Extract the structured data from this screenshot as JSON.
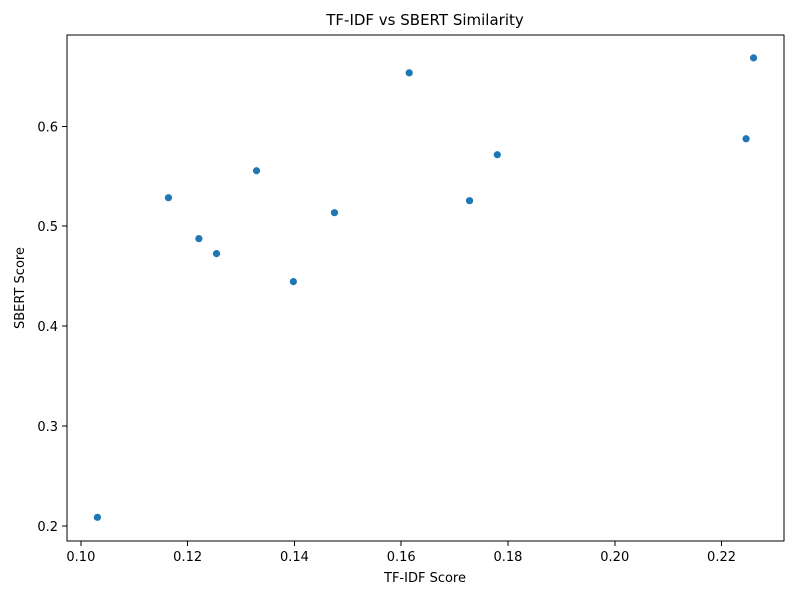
{
  "chart_data": {
    "type": "scatter",
    "title": "TF-IDF vs SBERT Similarity",
    "xlabel": "TF-IDF Score",
    "ylabel": "SBERT Score",
    "xlim": [
      0.0974,
      0.2317
    ],
    "ylim": [
      0.1848,
      0.6914
    ],
    "x_ticks": [
      0.1,
      0.12,
      0.14,
      0.16,
      0.18,
      0.2,
      0.22
    ],
    "x_tick_labels": [
      "0.10",
      "0.12",
      "0.14",
      "0.16",
      "0.18",
      "0.20",
      "0.22"
    ],
    "y_ticks": [
      0.2,
      0.3,
      0.4,
      0.5,
      0.6
    ],
    "y_tick_labels": [
      "0.2",
      "0.3",
      "0.4",
      "0.5",
      "0.6"
    ],
    "grid": false,
    "marker_color": "#1f77b4",
    "points": [
      {
        "x": 0.1031,
        "y": 0.2085
      },
      {
        "x": 0.1164,
        "y": 0.5285
      },
      {
        "x": 0.1221,
        "y": 0.4875
      },
      {
        "x": 0.1254,
        "y": 0.4725
      },
      {
        "x": 0.1329,
        "y": 0.5555
      },
      {
        "x": 0.1398,
        "y": 0.4445
      },
      {
        "x": 0.1475,
        "y": 0.5135
      },
      {
        "x": 0.1615,
        "y": 0.6535
      },
      {
        "x": 0.1728,
        "y": 0.5255
      },
      {
        "x": 0.178,
        "y": 0.5715
      },
      {
        "x": 0.2246,
        "y": 0.5875
      },
      {
        "x": 0.226,
        "y": 0.6685
      }
    ]
  }
}
